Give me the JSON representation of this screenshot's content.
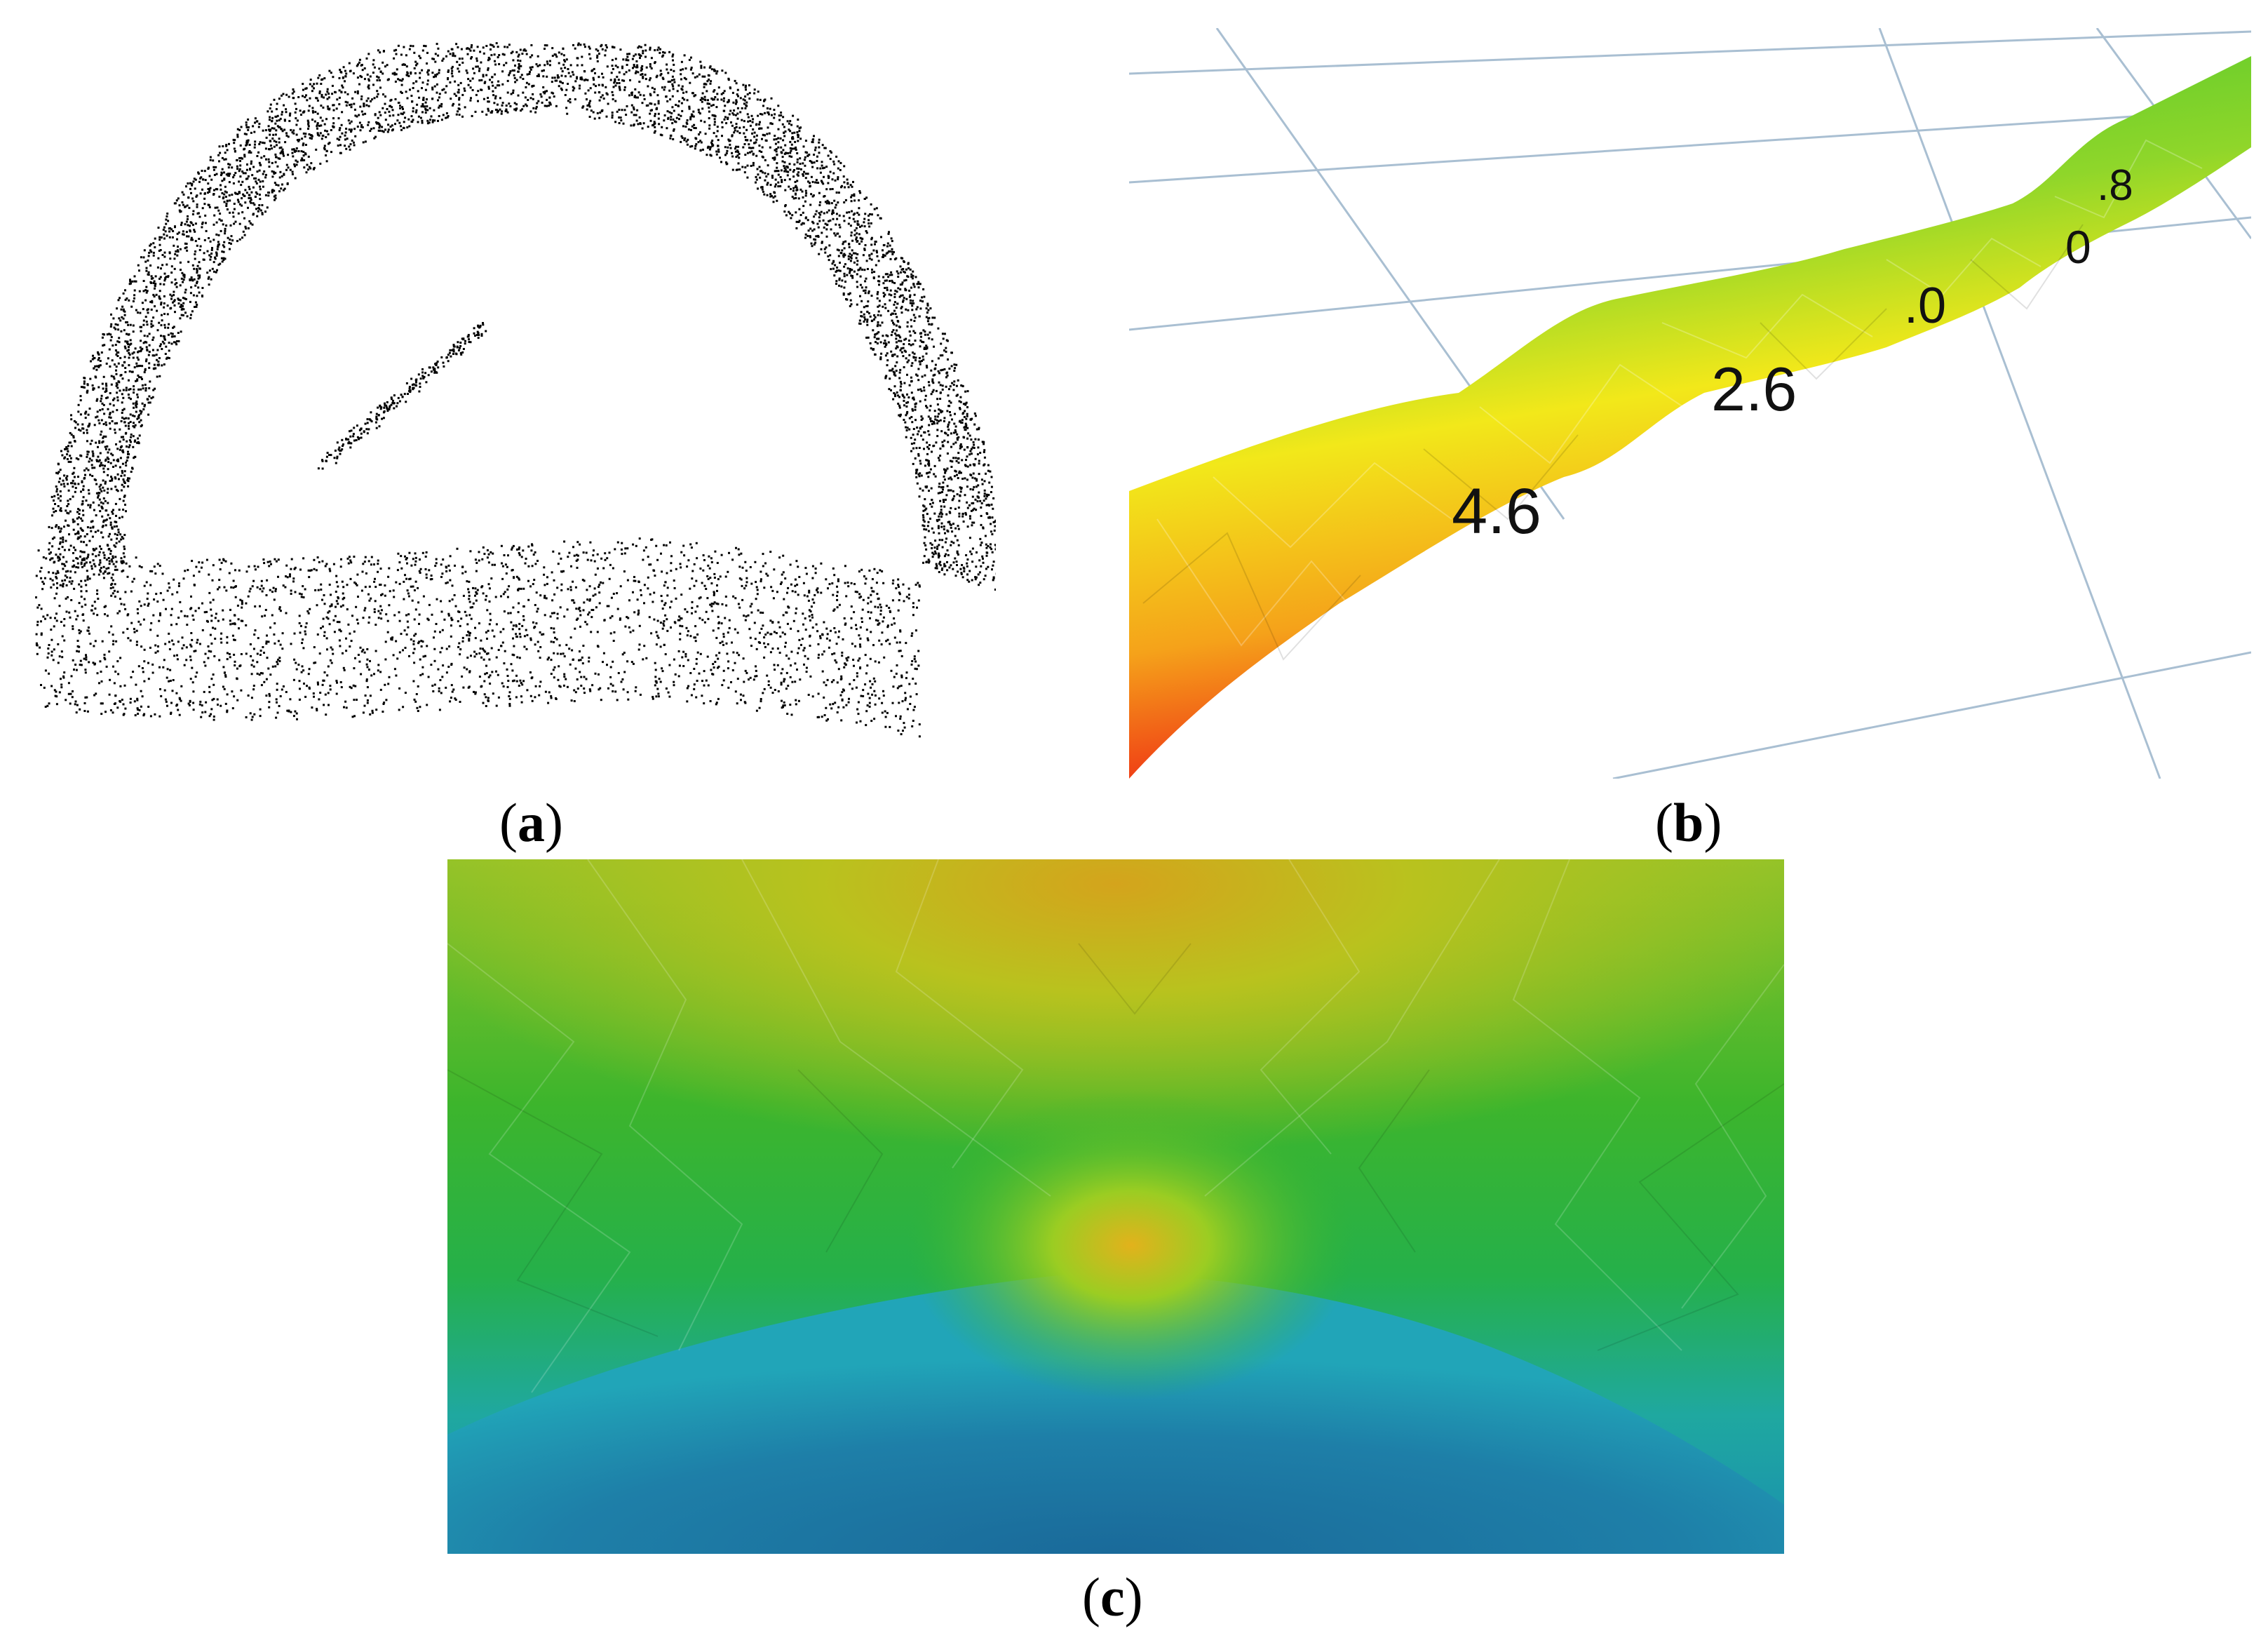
{
  "captions": {
    "a": "a",
    "b": "b",
    "c": "c"
  },
  "panel_b": {
    "labels": [
      "4.6",
      "2.6",
      ".0",
      "0",
      ".8"
    ],
    "grid_color": "#9fb8cc",
    "colors": [
      "#2fbf2f",
      "#f2ea16",
      "#f01a12"
    ]
  },
  "panel_c": {
    "colors": [
      "#e8a619",
      "#32b52d",
      "#1e9bb5",
      "#1a6fa0"
    ]
  }
}
